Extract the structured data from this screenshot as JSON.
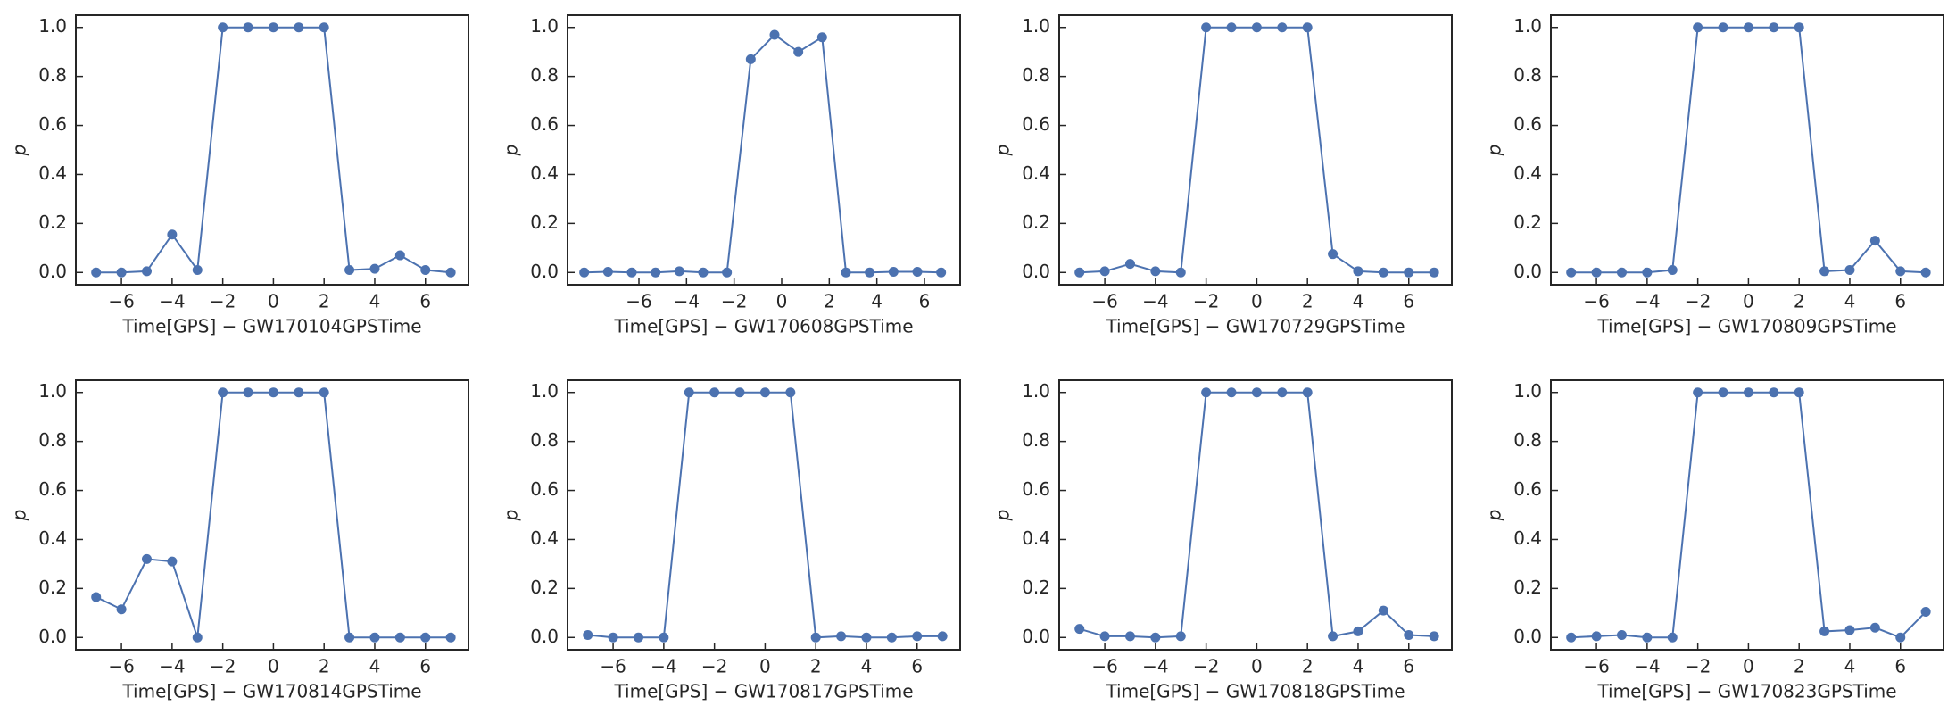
{
  "chart_data": [
    {
      "type": "line",
      "xlabel": "Time[GPS] − GW170104GPSTime",
      "ylabel": "p",
      "color": "#4c72b0",
      "x": [
        -7,
        -6,
        -5,
        -4,
        -3,
        -2,
        -1,
        0,
        1,
        2,
        3,
        4,
        5,
        6,
        7
      ],
      "values": [
        0,
        0,
        0.005,
        0.155,
        0.01,
        1,
        1,
        1,
        1,
        1,
        0.01,
        0.015,
        0.07,
        0.01,
        0
      ],
      "xlim": [
        -7.8,
        7.7
      ],
      "ylim": [
        -0.05,
        1.05
      ],
      "xticks": [
        {
          "value": -6,
          "label": "−6"
        },
        {
          "value": -4,
          "label": "−4"
        },
        {
          "value": -2,
          "label": "−2"
        },
        0,
        2,
        4,
        6
      ],
      "yticks": [
        {
          "value": 0,
          "label": "0.0"
        },
        0.2,
        0.4,
        0.6,
        0.8,
        {
          "value": 1,
          "label": "1.0"
        }
      ]
    },
    {
      "type": "line",
      "xlabel": "Time[GPS] − GW170608GPSTime",
      "ylabel": "p",
      "color": "#4c72b0",
      "x": [
        -8.3,
        -7.3,
        -6.3,
        -5.3,
        -4.3,
        -3.3,
        -2.3,
        -1.3,
        -0.3,
        0.7,
        1.7,
        2.7,
        3.7,
        4.7,
        5.7,
        6.7
      ],
      "values": [
        0,
        0.003,
        0,
        0,
        0.005,
        0,
        0,
        0.87,
        0.97,
        0.9,
        0.96,
        0,
        0,
        0.003,
        0.003,
        0
      ],
      "xlim": [
        -9.0,
        7.5
      ],
      "ylim": [
        -0.05,
        1.05
      ],
      "xticks": [
        {
          "value": -6,
          "label": "−6"
        },
        {
          "value": -4,
          "label": "−4"
        },
        {
          "value": -2,
          "label": "−2"
        },
        0,
        2,
        4,
        6
      ],
      "yticks": [
        {
          "value": 0,
          "label": "0.0"
        },
        0.2,
        0.4,
        0.6,
        0.8,
        {
          "value": 1,
          "label": "1.0"
        }
      ]
    },
    {
      "type": "line",
      "xlabel": "Time[GPS] − GW170729GPSTime",
      "ylabel": "p",
      "color": "#4c72b0",
      "x": [
        -7,
        -6,
        -5,
        -4,
        -3,
        -2,
        -1,
        0,
        1,
        2,
        3,
        4,
        5,
        6,
        7
      ],
      "values": [
        0,
        0.005,
        0.035,
        0.005,
        0,
        1,
        1,
        1,
        1,
        1,
        0.075,
        0.005,
        0,
        0,
        0
      ],
      "xlim": [
        -7.8,
        7.7
      ],
      "ylim": [
        -0.05,
        1.05
      ],
      "xticks": [
        {
          "value": -6,
          "label": "−6"
        },
        {
          "value": -4,
          "label": "−4"
        },
        {
          "value": -2,
          "label": "−2"
        },
        0,
        2,
        4,
        6
      ],
      "yticks": [
        {
          "value": 0,
          "label": "0.0"
        },
        0.2,
        0.4,
        0.6,
        0.8,
        {
          "value": 1,
          "label": "1.0"
        }
      ]
    },
    {
      "type": "line",
      "xlabel": "Time[GPS] − GW170809GPSTime",
      "ylabel": "p",
      "color": "#4c72b0",
      "x": [
        -7,
        -6,
        -5,
        -4,
        -3,
        -2,
        -1,
        0,
        1,
        2,
        3,
        4,
        5,
        6,
        7
      ],
      "values": [
        0,
        0,
        0,
        0,
        0.01,
        1,
        1,
        1,
        1,
        1,
        0.005,
        0.01,
        0.13,
        0.005,
        0
      ],
      "xlim": [
        -7.8,
        7.7
      ],
      "ylim": [
        -0.05,
        1.05
      ],
      "xticks": [
        {
          "value": -6,
          "label": "−6"
        },
        {
          "value": -4,
          "label": "−4"
        },
        {
          "value": -2,
          "label": "−2"
        },
        0,
        2,
        4,
        6
      ],
      "yticks": [
        {
          "value": 0,
          "label": "0.0"
        },
        0.2,
        0.4,
        0.6,
        0.8,
        {
          "value": 1,
          "label": "1.0"
        }
      ]
    },
    {
      "type": "line",
      "xlabel": "Time[GPS] − GW170814GPSTime",
      "ylabel": "p",
      "color": "#4c72b0",
      "x": [
        -7,
        -6,
        -5,
        -4,
        -3,
        -2,
        -1,
        0,
        1,
        2,
        3,
        4,
        5,
        6,
        7
      ],
      "values": [
        0.165,
        0.115,
        0.32,
        0.31,
        0,
        1,
        1,
        1,
        1,
        1,
        0,
        0,
        0,
        0,
        0
      ],
      "xlim": [
        -7.8,
        7.7
      ],
      "ylim": [
        -0.05,
        1.05
      ],
      "xticks": [
        {
          "value": -6,
          "label": "−6"
        },
        {
          "value": -4,
          "label": "−4"
        },
        {
          "value": -2,
          "label": "−2"
        },
        0,
        2,
        4,
        6
      ],
      "yticks": [
        {
          "value": 0,
          "label": "0.0"
        },
        0.2,
        0.4,
        0.6,
        0.8,
        {
          "value": 1,
          "label": "1.0"
        }
      ]
    },
    {
      "type": "line",
      "xlabel": "Time[GPS] − GW170817GPSTime",
      "ylabel": "p",
      "color": "#4c72b0",
      "x": [
        -7,
        -6,
        -5,
        -4,
        -3,
        -2,
        -1,
        0,
        1,
        2,
        3,
        4,
        5,
        6,
        7
      ],
      "values": [
        0.01,
        0,
        0,
        0,
        1,
        1,
        1,
        1,
        1,
        0,
        0.005,
        0,
        0,
        0.005,
        0.005
      ],
      "xlim": [
        -7.8,
        7.7
      ],
      "ylim": [
        -0.05,
        1.05
      ],
      "xticks": [
        {
          "value": -6,
          "label": "−6"
        },
        {
          "value": -4,
          "label": "−4"
        },
        {
          "value": -2,
          "label": "−2"
        },
        0,
        2,
        4,
        6
      ],
      "yticks": [
        {
          "value": 0,
          "label": "0.0"
        },
        0.2,
        0.4,
        0.6,
        0.8,
        {
          "value": 1,
          "label": "1.0"
        }
      ]
    },
    {
      "type": "line",
      "xlabel": "Time[GPS] − GW170818GPSTime",
      "ylabel": "p",
      "color": "#4c72b0",
      "x": [
        -7,
        -6,
        -5,
        -4,
        -3,
        -2,
        -1,
        0,
        1,
        2,
        3,
        4,
        5,
        6,
        7
      ],
      "values": [
        0.035,
        0.005,
        0.005,
        0,
        0.005,
        1,
        1,
        1,
        1,
        1,
        0.005,
        0.025,
        0.11,
        0.01,
        0.005
      ],
      "xlim": [
        -7.8,
        7.7
      ],
      "ylim": [
        -0.05,
        1.05
      ],
      "xticks": [
        {
          "value": -6,
          "label": "−6"
        },
        {
          "value": -4,
          "label": "−4"
        },
        {
          "value": -2,
          "label": "−2"
        },
        0,
        2,
        4,
        6
      ],
      "yticks": [
        {
          "value": 0,
          "label": "0.0"
        },
        0.2,
        0.4,
        0.6,
        0.8,
        {
          "value": 1,
          "label": "1.0"
        }
      ]
    },
    {
      "type": "line",
      "xlabel": "Time[GPS] − GW170823GPSTime",
      "ylabel": "p",
      "color": "#4c72b0",
      "x": [
        -7,
        -6,
        -5,
        -4,
        -3,
        -2,
        -1,
        0,
        1,
        2,
        3,
        4,
        5,
        6,
        7
      ],
      "values": [
        0,
        0.005,
        0.01,
        0,
        0,
        1,
        1,
        1,
        1,
        1,
        0.025,
        0.03,
        0.04,
        0,
        0.105
      ],
      "xlim": [
        -7.8,
        7.7
      ],
      "ylim": [
        -0.05,
        1.05
      ],
      "xticks": [
        {
          "value": -6,
          "label": "−6"
        },
        {
          "value": -4,
          "label": "−4"
        },
        {
          "value": -2,
          "label": "−2"
        },
        0,
        2,
        4,
        6
      ],
      "yticks": [
        {
          "value": 0,
          "label": "0.0"
        },
        0.2,
        0.4,
        0.6,
        0.8,
        {
          "value": 1,
          "label": "1.0"
        }
      ]
    }
  ]
}
